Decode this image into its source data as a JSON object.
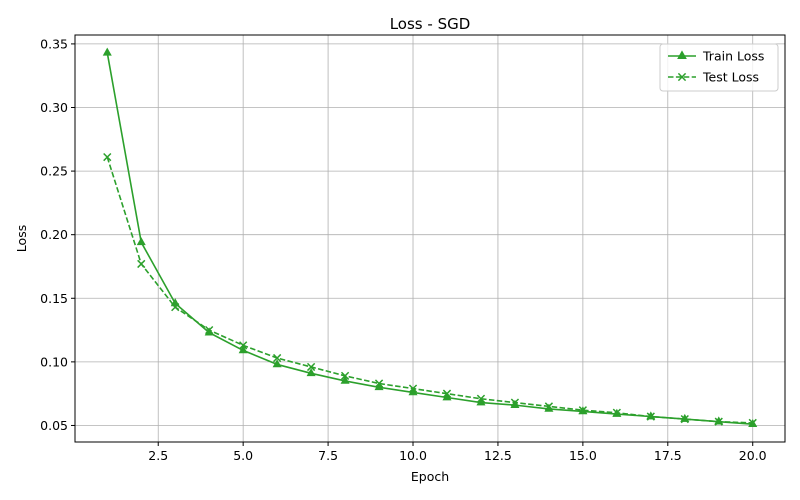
{
  "chart_data": {
    "type": "line",
    "title": "Loss - SGD",
    "xlabel": "Epoch",
    "ylabel": "Loss",
    "xlim": [
      0.05,
      20.95
    ],
    "ylim": [
      0.037,
      0.357
    ],
    "x_ticks": [
      2.5,
      5.0,
      7.5,
      10.0,
      12.5,
      15.0,
      17.5,
      20.0
    ],
    "x_tick_labels": [
      "2.5",
      "5.0",
      "7.5",
      "10.0",
      "12.5",
      "15.0",
      "17.5",
      "20.0"
    ],
    "y_ticks": [
      0.05,
      0.1,
      0.15,
      0.2,
      0.25,
      0.3,
      0.35
    ],
    "y_tick_labels": [
      "0.05",
      "0.10",
      "0.15",
      "0.20",
      "0.25",
      "0.30",
      "0.35"
    ],
    "grid": true,
    "legend_position": "top-right",
    "x": [
      1,
      2,
      3,
      4,
      5,
      6,
      7,
      8,
      9,
      10,
      11,
      12,
      13,
      14,
      15,
      16,
      17,
      18,
      19,
      20
    ],
    "series": [
      {
        "name": "Train Loss",
        "color": "#2ca02c",
        "line_style": "solid",
        "marker": "triangle-up",
        "values": [
          0.343,
          0.194,
          0.146,
          0.123,
          0.109,
          0.098,
          0.091,
          0.085,
          0.08,
          0.076,
          0.072,
          0.068,
          0.066,
          0.063,
          0.061,
          0.059,
          0.057,
          0.055,
          0.053,
          0.051
        ]
      },
      {
        "name": "Test Loss",
        "color": "#2ca02c",
        "line_style": "dashed",
        "marker": "x",
        "values": [
          0.261,
          0.177,
          0.143,
          0.125,
          0.113,
          0.103,
          0.096,
          0.089,
          0.083,
          0.079,
          0.075,
          0.071,
          0.068,
          0.065,
          0.062,
          0.06,
          0.057,
          0.055,
          0.053,
          0.052
        ]
      }
    ]
  }
}
